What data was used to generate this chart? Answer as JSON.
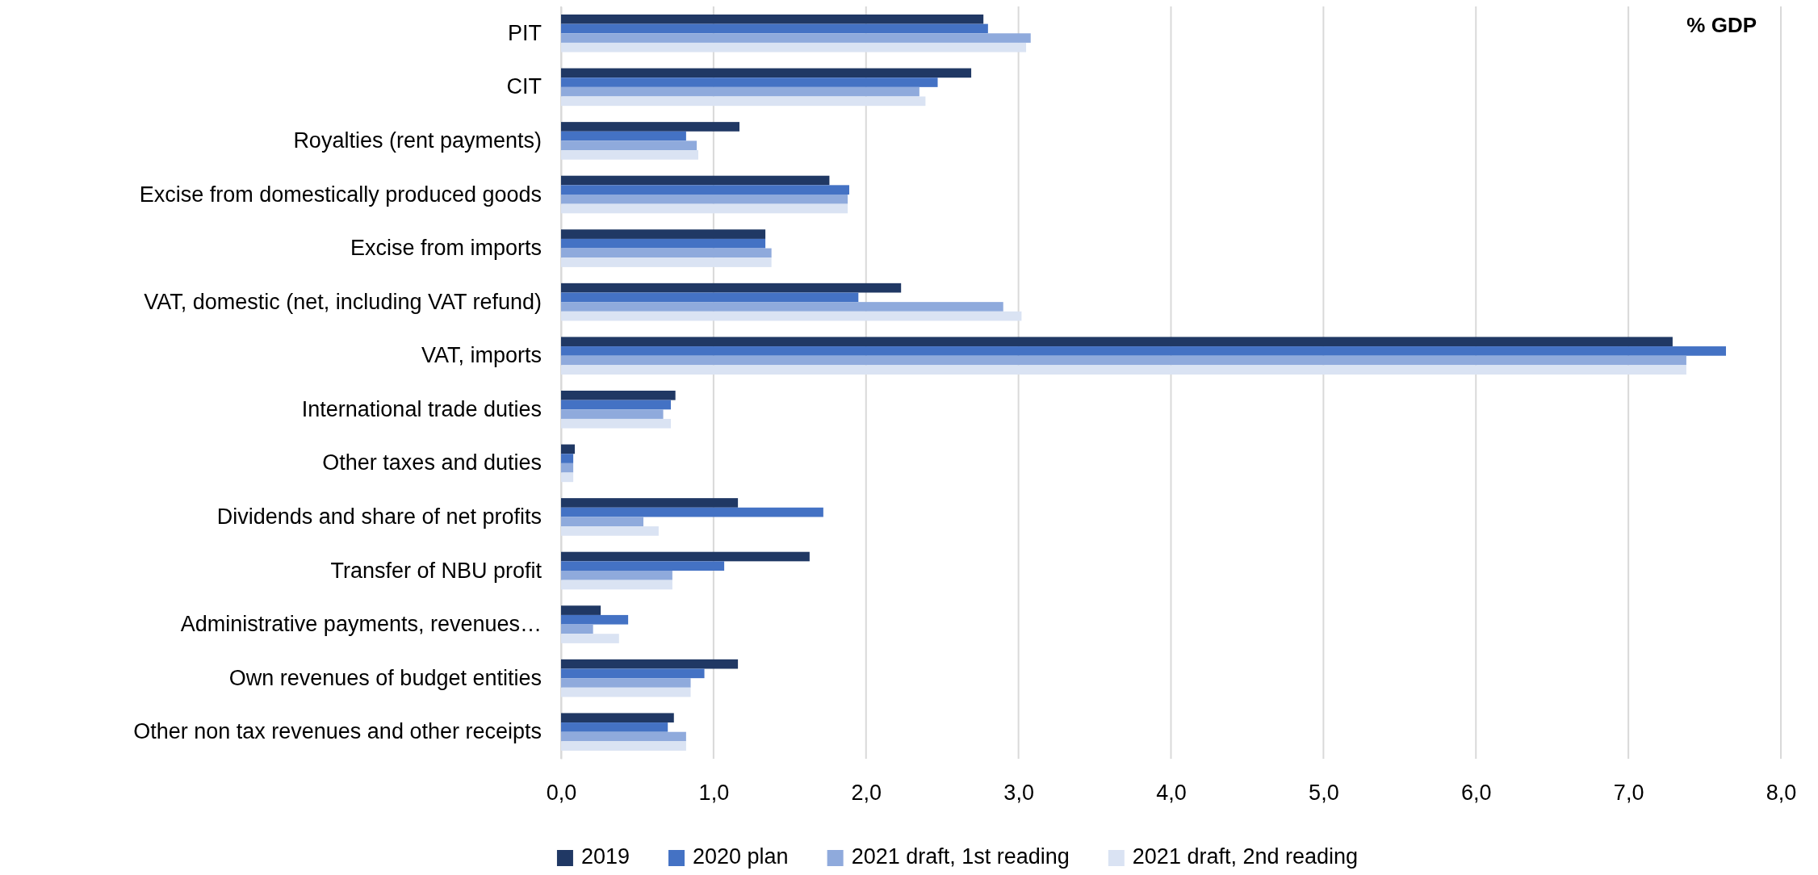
{
  "chart_data": {
    "type": "bar",
    "orientation": "horizontal",
    "categories": [
      "PIT",
      "CIT",
      "Royalties (rent payments)",
      "Excise  from domestically produced goods",
      "Excise from imports",
      "VAT, domestic (net, including VAT refund)",
      "VAT, imports",
      "International trade duties",
      "Other taxes and duties",
      "Dividends and share of net profits",
      "Transfer of NBU profit",
      "Administrative payments, revenues…",
      "Own revenues of budget entities",
      "Other non tax revenues and other receipts"
    ],
    "series": [
      {
        "name": "2019",
        "color": "#203864",
        "values": [
          2.77,
          2.69,
          1.17,
          1.76,
          1.34,
          2.23,
          7.29,
          0.75,
          0.09,
          1.16,
          1.63,
          0.26,
          1.16,
          0.74
        ]
      },
      {
        "name": "2020 plan",
        "color": "#4472c4",
        "values": [
          2.8,
          2.47,
          0.82,
          1.89,
          1.34,
          1.95,
          7.64,
          0.72,
          0.08,
          1.72,
          1.07,
          0.44,
          0.94,
          0.7
        ]
      },
      {
        "name": "2021 draft, 1st reading",
        "color": "#8faadc",
        "values": [
          3.08,
          2.35,
          0.89,
          1.88,
          1.38,
          2.9,
          7.38,
          0.67,
          0.08,
          0.54,
          0.73,
          0.21,
          0.85,
          0.82
        ]
      },
      {
        "name": "2021 draft, 2nd reading",
        "color": "#dae3f3",
        "values": [
          3.05,
          2.39,
          0.9,
          1.88,
          1.38,
          3.02,
          7.38,
          0.72,
          0.08,
          0.64,
          0.73,
          0.38,
          0.85,
          0.82
        ]
      }
    ],
    "xlim": [
      0,
      8
    ],
    "xticks": [
      {
        "value": 0,
        "label": "0,0"
      },
      {
        "value": 1,
        "label": "1,0"
      },
      {
        "value": 2,
        "label": "2,0"
      },
      {
        "value": 3,
        "label": "3,0"
      },
      {
        "value": 4,
        "label": "4,0"
      },
      {
        "value": 5,
        "label": "5,0"
      },
      {
        "value": 6,
        "label": "6,0"
      },
      {
        "value": 7,
        "label": "7,0"
      },
      {
        "value": 8,
        "label": "8,0"
      }
    ],
    "grid": "x",
    "legend": "bottom",
    "annotations": [
      "% GDP"
    ]
  }
}
